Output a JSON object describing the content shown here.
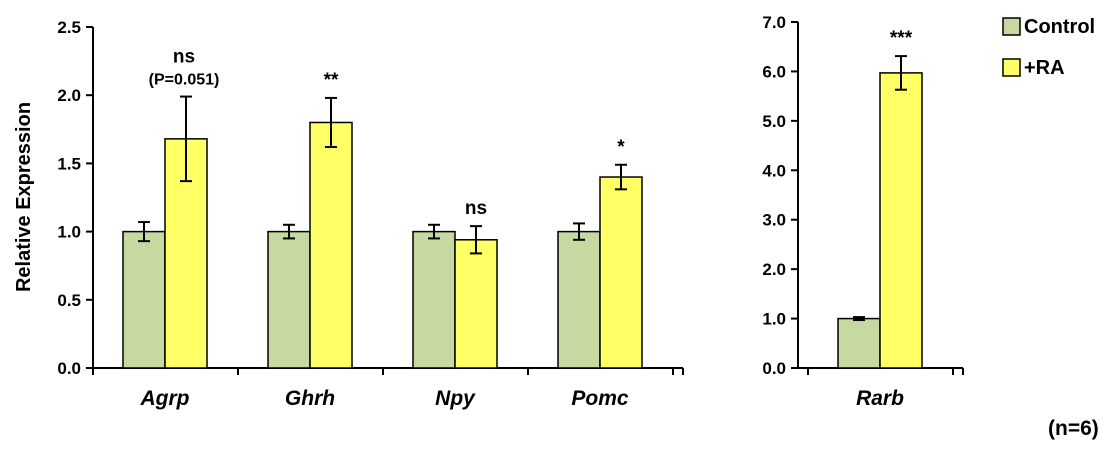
{
  "colors": {
    "control": "#c5d9a0",
    "ra": "#ffff66",
    "stroke": "#000000"
  },
  "legend": {
    "control_label": "Control",
    "ra_label": "+RA"
  },
  "note": "(n=6)",
  "chart_data": [
    {
      "type": "bar",
      "ylabel": "Relative Expression",
      "ylim": [
        0,
        2.5
      ],
      "yticks": [
        "0.0",
        "0.5",
        "1.0",
        "1.5",
        "2.0",
        "2.5"
      ],
      "categories": [
        "Agrp",
        "Ghrh",
        "Npy",
        "Pomc"
      ],
      "series": [
        {
          "name": "Control",
          "values": [
            1.0,
            1.0,
            1.0,
            1.0
          ],
          "errors": [
            0.07,
            0.05,
            0.05,
            0.06
          ]
        },
        {
          "name": "+RA",
          "values": [
            1.68,
            1.8,
            0.94,
            1.4
          ],
          "errors": [
            0.31,
            0.18,
            0.1,
            0.09
          ]
        }
      ],
      "annotations": [
        {
          "category": "Agrp",
          "text": "ns",
          "sub": "(P=0.051)"
        },
        {
          "category": "Ghrh",
          "text": "**",
          "sub": ""
        },
        {
          "category": "Npy",
          "text": "ns",
          "sub": ""
        },
        {
          "category": "Pomc",
          "text": "*",
          "sub": ""
        }
      ]
    },
    {
      "type": "bar",
      "ylabel": "",
      "ylim": [
        0,
        7
      ],
      "yticks": [
        "0.0",
        "1.0",
        "2.0",
        "3.0",
        "4.0",
        "5.0",
        "6.0",
        "7.0"
      ],
      "categories": [
        "Rarb"
      ],
      "series": [
        {
          "name": "Control",
          "values": [
            1.0
          ],
          "errors": [
            0.03
          ]
        },
        {
          "name": "+RA",
          "values": [
            5.97
          ],
          "errors": [
            0.34
          ]
        }
      ],
      "annotations": [
        {
          "category": "Rarb",
          "text": "***",
          "sub": ""
        }
      ]
    }
  ]
}
